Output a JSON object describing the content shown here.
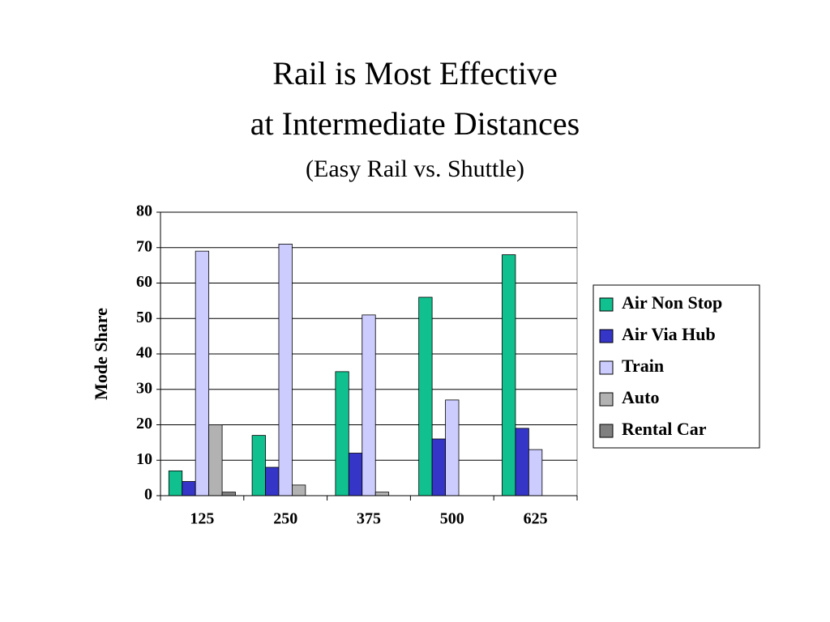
{
  "chart_data": {
    "type": "bar",
    "title": [
      "Rail is Most Effective",
      "at Intermediate Distances"
    ],
    "subtitle": "(Easy Rail vs. Shuttle)",
    "y_label": "Mode Share",
    "categories": [
      "125",
      "250",
      "375",
      "500",
      "625"
    ],
    "series": [
      {
        "name": "Air Non Stop",
        "color": "#10c08e",
        "values": [
          7,
          17,
          35,
          56,
          68
        ]
      },
      {
        "name": "Air Via Hub",
        "color": "#3535c8",
        "values": [
          4,
          8,
          12,
          16,
          19
        ]
      },
      {
        "name": "Train",
        "color": "#ccccff",
        "values": [
          69,
          71,
          51,
          27,
          13
        ]
      },
      {
        "name": "Auto",
        "color": "#b2b2b2",
        "values": [
          20,
          3,
          1,
          0,
          0
        ]
      },
      {
        "name": "Rental Car",
        "color": "#808080",
        "values": [
          1,
          0,
          0,
          0,
          0
        ]
      }
    ],
    "ylim": [
      0,
      80
    ],
    "yticks": [
      0,
      10,
      20,
      30,
      40,
      50,
      60,
      70,
      80
    ],
    "grid": true,
    "legend": "right"
  }
}
